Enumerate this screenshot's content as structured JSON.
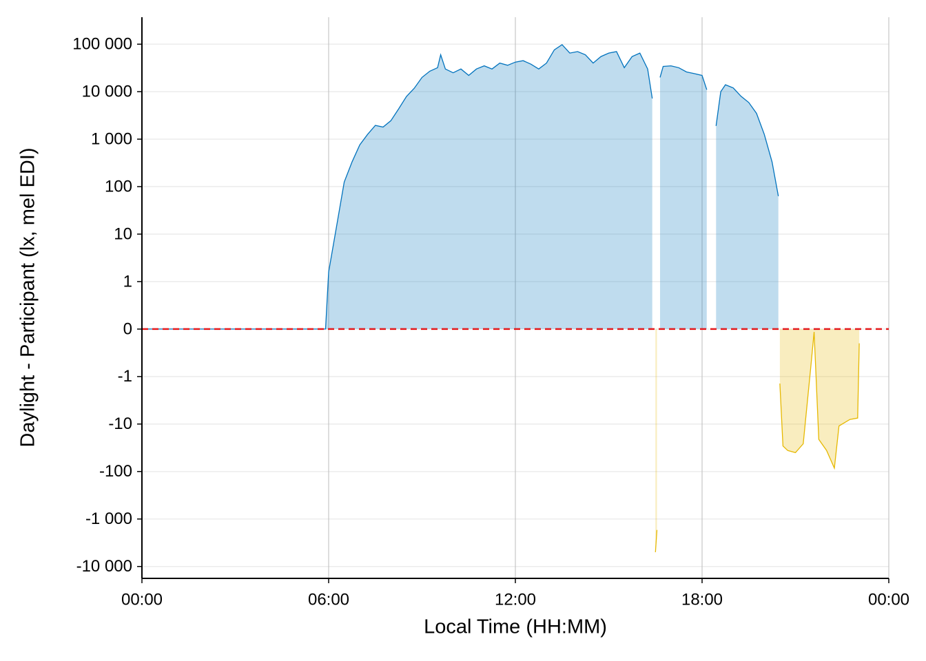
{
  "chart_data": {
    "type": "area",
    "y_label": "Daylight - Participant (lx, mel EDI)",
    "x_label": "Local Time (HH:MM)",
    "scale": "symlog",
    "xlim": [
      0,
      24
    ],
    "xticks": [
      {
        "value": 0,
        "label": "00:00"
      },
      {
        "value": 6,
        "label": "06:00"
      },
      {
        "value": 12,
        "label": "12:00"
      },
      {
        "value": 18,
        "label": "18:00"
      },
      {
        "value": 24,
        "label": "00:00"
      }
    ],
    "ylim": [
      -17800,
      370000
    ],
    "yticks": [
      {
        "value": -10000,
        "label": "-10 000"
      },
      {
        "value": -1000,
        "label": "-1 000"
      },
      -100,
      -10,
      -1,
      0,
      1,
      10,
      100,
      {
        "value": 1000,
        "label": "1 000"
      },
      {
        "value": 10000,
        "label": "10 000"
      },
      {
        "value": 100000,
        "label": "100 000"
      }
    ],
    "grid": true,
    "reference_line": {
      "value": 0,
      "color": "#e41a1c"
    },
    "positive_color": "#0072bd",
    "negative_color": "#e6b800",
    "x": [
      0,
      5.9,
      6.0,
      6.25,
      6.5,
      6.75,
      7.0,
      7.25,
      7.5,
      7.75,
      8.0,
      8.25,
      8.5,
      8.75,
      9.0,
      9.25,
      9.5,
      9.6,
      9.75,
      10.0,
      10.25,
      10.5,
      10.75,
      11.0,
      11.25,
      11.5,
      11.75,
      12.0,
      12.25,
      12.5,
      12.75,
      13.0,
      13.25,
      13.5,
      13.75,
      14.0,
      14.25,
      14.5,
      14.75,
      15.0,
      15.25,
      15.5,
      15.75,
      16.0,
      16.25,
      16.4,
      16.45,
      16.5,
      16.55,
      16.6,
      16.65,
      16.75,
      17.0,
      17.25,
      17.5,
      17.75,
      18.0,
      18.15,
      18.3,
      18.45,
      18.6,
      18.75,
      19.0,
      19.25,
      19.5,
      19.75,
      20.0,
      20.25,
      20.45,
      20.47,
      20.5,
      20.6,
      20.75,
      21.0,
      21.25,
      21.5,
      21.6,
      21.75,
      22.0,
      22.25,
      22.4,
      22.75,
      23.0,
      23.05
    ],
    "values": [
      0,
      0,
      1.6,
      14,
      125,
      330,
      760,
      1260,
      1950,
      1800,
      2450,
      4350,
      7900,
      11800,
      20000,
      27000,
      32000,
      60000,
      30000,
      25000,
      30000,
      22000,
      30000,
      35000,
      30000,
      40000,
      36000,
      42000,
      45000,
      38000,
      30000,
      40000,
      76000,
      98000,
      65000,
      70000,
      60000,
      40000,
      55000,
      65000,
      70000,
      32000,
      55000,
      65000,
      30000,
      7200,
      null,
      -5000,
      -1700,
      null,
      20000,
      34000,
      35000,
      32000,
      26000,
      24000,
      22000,
      11000,
      null,
      1900,
      10000,
      14000,
      12000,
      8000,
      5900,
      3500,
      1260,
      330,
      63,
      null,
      -1.4,
      -29,
      -36,
      -40,
      -26,
      -0.75,
      -0.06,
      -21,
      -36,
      -85,
      -11,
      -8,
      -7.5,
      -0.3
    ]
  }
}
